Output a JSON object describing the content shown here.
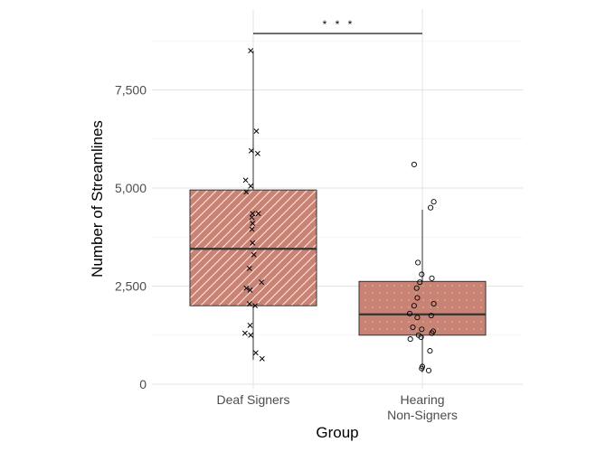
{
  "chart_data": {
    "type": "box",
    "xlabel": "Group",
    "ylabel": "Number of Streamlines",
    "ylim": [
      0,
      9000
    ],
    "y_ticks": [
      0,
      2500,
      5000,
      7500
    ],
    "y_tick_labels": [
      "0",
      "2,500",
      "5,000",
      "7,500"
    ],
    "grid": true,
    "legend": "none",
    "significance": {
      "from": "Deaf Signers",
      "to": "Hearing\nNon-Signers",
      "label": "* * *",
      "y": 8950
    },
    "groups": [
      {
        "category": "Deaf Signers",
        "marker": "cross",
        "fill": "#c98375",
        "pattern": "stripe",
        "box": {
          "whisker_low": 620,
          "q1": 2000,
          "median": 3450,
          "q3": 4950,
          "whisker_high": 8500
        },
        "points": [
          [
            8500,
            -0.04
          ],
          [
            6450,
            0.05
          ],
          [
            5950,
            -0.03
          ],
          [
            5880,
            0.07
          ],
          [
            5200,
            -0.12
          ],
          [
            5050,
            -0.04
          ],
          [
            4900,
            -0.11
          ],
          [
            4350,
            0.08
          ],
          [
            4350,
            -0.01
          ],
          [
            4250,
            -0.02
          ],
          [
            4100,
            -0.01
          ],
          [
            3950,
            -0.02
          ],
          [
            3600,
            -0.01
          ],
          [
            3300,
            0.01
          ],
          [
            2950,
            -0.06
          ],
          [
            2600,
            0.13
          ],
          [
            2450,
            -0.11
          ],
          [
            2400,
            -0.05
          ],
          [
            2050,
            -0.06
          ],
          [
            2000,
            0.03
          ],
          [
            1500,
            -0.05
          ],
          [
            1300,
            -0.13
          ],
          [
            1250,
            -0.04
          ],
          [
            800,
            0.04
          ],
          [
            650,
            0.14
          ]
        ]
      },
      {
        "category": "Hearing\nNon-Signers",
        "marker": "circle",
        "fill": "#c98375",
        "pattern": "dots",
        "box": {
          "whisker_low": 300,
          "q1": 1250,
          "median": 1780,
          "q3": 2620,
          "whisker_high": 4450
        },
        "points": [
          [
            5600,
            -0.13
          ],
          [
            4650,
            0.18
          ],
          [
            4500,
            0.13
          ],
          [
            3100,
            -0.07
          ],
          [
            2800,
            -0.01
          ],
          [
            2700,
            0.15
          ],
          [
            2600,
            -0.04
          ],
          [
            2450,
            -0.09
          ],
          [
            2200,
            -0.08
          ],
          [
            2050,
            0.18
          ],
          [
            2000,
            -0.13
          ],
          [
            1800,
            -0.2
          ],
          [
            1750,
            0.14
          ],
          [
            1700,
            -0.08
          ],
          [
            1450,
            -0.15
          ],
          [
            1400,
            -0.01
          ],
          [
            1350,
            0.17
          ],
          [
            1300,
            0.15
          ],
          [
            1250,
            -0.06
          ],
          [
            1200,
            -0.02
          ],
          [
            1150,
            -0.19
          ],
          [
            850,
            0.12
          ],
          [
            450,
            0.0
          ],
          [
            400,
            -0.01
          ],
          [
            350,
            0.1
          ]
        ]
      }
    ]
  }
}
